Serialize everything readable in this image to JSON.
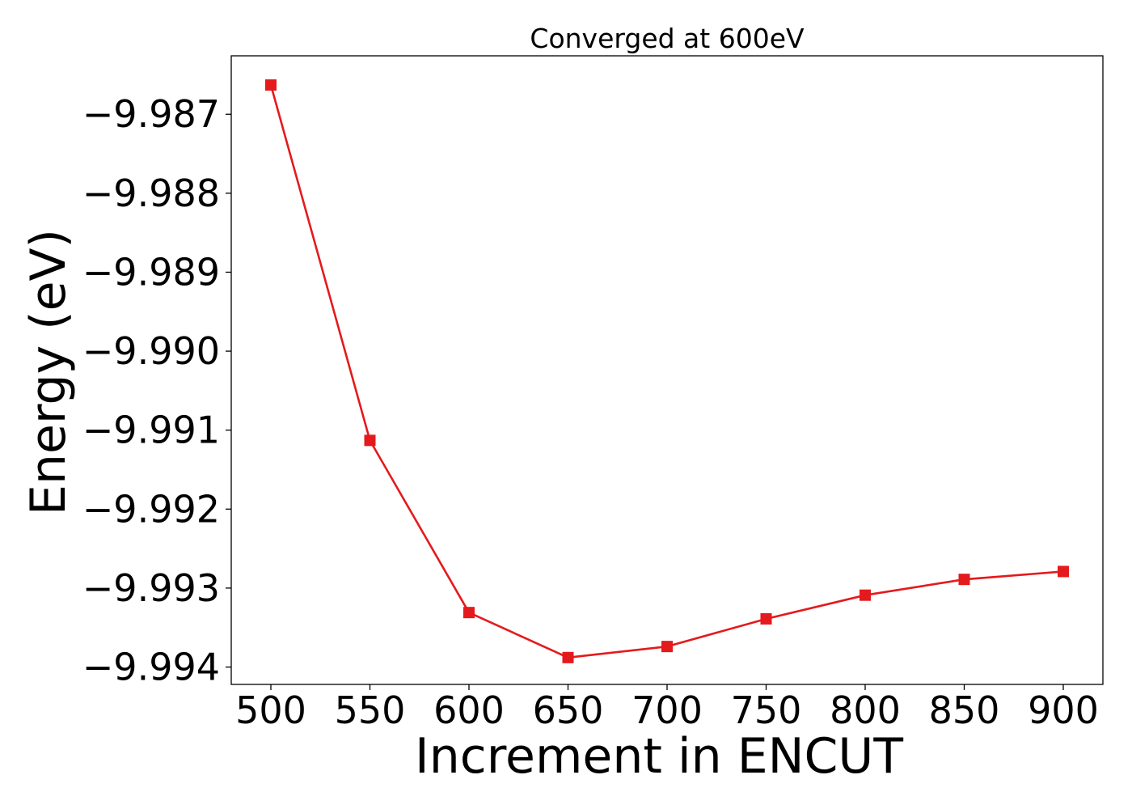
{
  "chart_data": {
    "type": "line",
    "title": "Converged at 600eV",
    "xlabel": "Increment in ENCUT",
    "ylabel": "Energy (eV)",
    "x": [
      500,
      550,
      600,
      650,
      700,
      750,
      800,
      850,
      900
    ],
    "series": [
      {
        "values": [
          -9.98663,
          -9.99113,
          -9.99331,
          -9.99388,
          -9.99374,
          -9.99339,
          -9.99309,
          -9.99289,
          -9.99279
        ],
        "color": "#e41a1c",
        "marker": "square"
      }
    ],
    "xticks": [
      500,
      550,
      600,
      650,
      700,
      750,
      800,
      850,
      900
    ],
    "xtick_labels": [
      "500",
      "550",
      "600",
      "650",
      "700",
      "750",
      "800",
      "850",
      "900"
    ],
    "yticks": [
      -9.987,
      -9.988,
      -9.989,
      -9.99,
      -9.991,
      -9.992,
      -9.993,
      -9.994
    ],
    "ytick_labels": [
      "−9.987",
      "−9.988",
      "−9.989",
      "−9.990",
      "−9.991",
      "−9.992",
      "−9.993",
      "−9.994"
    ],
    "xlim": [
      480,
      920
    ],
    "ylim": [
      -9.99422,
      -9.98626
    ],
    "grid": false,
    "legend": "none"
  }
}
